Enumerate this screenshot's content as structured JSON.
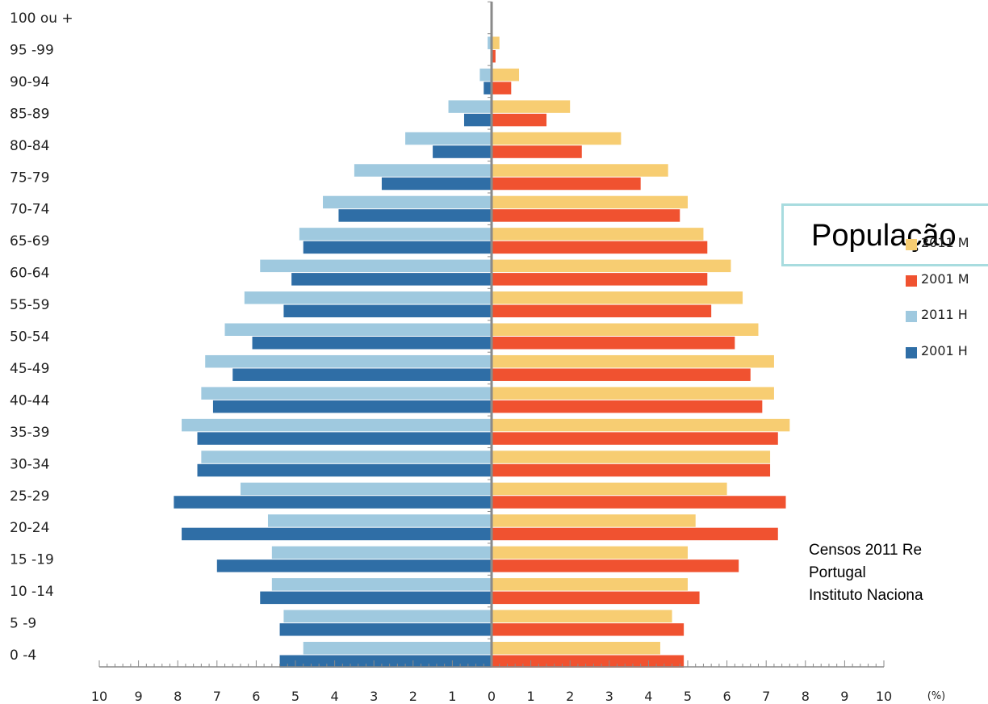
{
  "chart_data": {
    "type": "bar",
    "orientation": "horizontal-population-pyramid",
    "title": "População",
    "xlabel": "(%)",
    "xlim": [
      -10,
      10
    ],
    "x_ticks": [
      "10",
      "9",
      "8",
      "7",
      "6",
      "5",
      "4",
      "3",
      "2",
      "1",
      "0",
      "1",
      "2",
      "3",
      "4",
      "5",
      "6",
      "7",
      "8",
      "9",
      "10"
    ],
    "categories": [
      "100 ou +",
      "95 -99",
      "90-94",
      "85-89",
      "80-84",
      "75-79",
      "70-74",
      "65-69",
      "60-64",
      "55-59",
      "50-54",
      "45-49",
      "40-44",
      "35-39",
      "30-34",
      "25-29",
      "20-24",
      "15 -19",
      "10 -14",
      "5 -9",
      "0 -4"
    ],
    "series": [
      {
        "name": "2011 M",
        "side": "right",
        "color": "#f7cd72",
        "values": [
          0.0,
          0.2,
          0.7,
          2.0,
          3.3,
          4.5,
          5.0,
          5.4,
          6.1,
          6.4,
          6.8,
          7.2,
          7.2,
          7.6,
          7.1,
          6.0,
          5.2,
          5.0,
          5.0,
          4.6,
          4.3
        ]
      },
      {
        "name": "2001 M",
        "side": "right",
        "color": "#f05230",
        "values": [
          0.0,
          0.1,
          0.5,
          1.4,
          2.3,
          3.8,
          4.8,
          5.5,
          5.5,
          5.6,
          6.2,
          6.6,
          6.9,
          7.3,
          7.1,
          7.5,
          7.3,
          6.3,
          5.3,
          4.9,
          4.9
        ]
      },
      {
        "name": "2011 H",
        "side": "left",
        "color": "#9fc9df",
        "values": [
          0.0,
          0.1,
          0.3,
          1.1,
          2.2,
          3.5,
          4.3,
          4.9,
          5.9,
          6.3,
          6.8,
          7.3,
          7.4,
          7.9,
          7.4,
          6.4,
          5.7,
          5.6,
          5.6,
          5.3,
          4.8
        ]
      },
      {
        "name": "2001 H",
        "side": "left",
        "color": "#2f6ea6",
        "values": [
          0.0,
          0.0,
          0.2,
          0.7,
          1.5,
          2.8,
          3.9,
          4.8,
          5.1,
          5.3,
          6.1,
          6.6,
          7.1,
          7.5,
          7.5,
          8.1,
          7.9,
          7.0,
          5.9,
          5.4,
          5.4
        ]
      }
    ],
    "legend": [
      "2011 M",
      "2001 M",
      "2011 H",
      "2001 H"
    ],
    "legend_placement": "right",
    "grid": false
  },
  "source_lines": [
    "Censos 2011 Re",
    "Portugal",
    "Instituto Naciona"
  ]
}
